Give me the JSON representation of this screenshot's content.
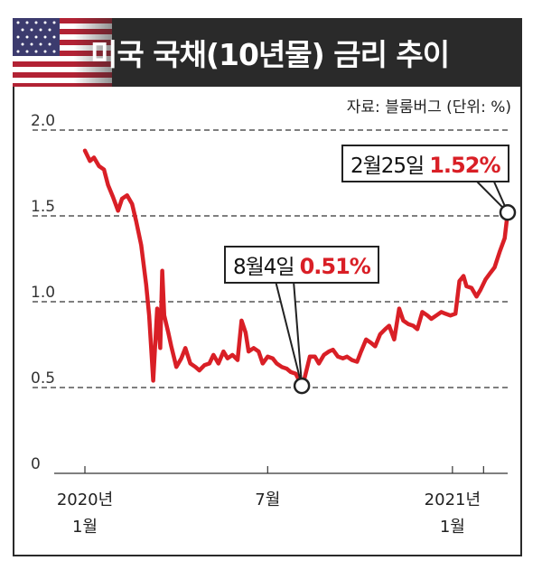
{
  "header": {
    "title": "미국 국채(10년물) 금리 추이"
  },
  "source_text": "자료: 블룸버그 (단위: %)",
  "callouts": [
    {
      "label": "8월4일",
      "value": "0.51%"
    },
    {
      "label": "2월25일",
      "value": "1.52%"
    }
  ],
  "colors": {
    "line": "#d91f26",
    "header_bg": "#2a2a2a",
    "highlight_text": "#d91f26"
  },
  "icons": {
    "flag": "us-flag-icon"
  },
  "chart_data": {
    "type": "line",
    "title": "미국 국채(10년물) 금리 추이",
    "ylabel": "",
    "xlabel": "",
    "unit": "%",
    "ylim": [
      0,
      2.0
    ],
    "yticks": [
      "2.0",
      "1.5",
      "1.0",
      "0.5",
      "0"
    ],
    "ytick_values": [
      2.0,
      1.5,
      1.0,
      0.5,
      0
    ],
    "grid": "dashed horizontal",
    "xtick_labels": [
      {
        "date": "2020-01-01",
        "lines": [
          "2020년",
          "1월"
        ]
      },
      {
        "date": "2020-07-01",
        "lines": [
          "7월"
        ]
      },
      {
        "date": "2021-01-01",
        "lines": [
          "2021년",
          "1월"
        ]
      }
    ],
    "x_axis_ticks": [
      "2020-01-01",
      "2020-07-01",
      "2021-01-01",
      "2021-02-01"
    ],
    "series": [
      {
        "x": [
          "2020-01-01",
          "2020-01-06",
          "2020-01-10",
          "2020-01-15",
          "2020-01-20",
          "2020-01-24",
          "2020-01-29",
          "2020-02-03",
          "2020-02-07",
          "2020-02-12",
          "2020-02-17",
          "2020-02-21",
          "2020-02-26",
          "2020-03-02",
          "2020-03-05",
          "2020-03-09",
          "2020-03-11",
          "2020-03-13",
          "2020-03-16",
          "2020-03-18",
          "2020-03-20",
          "2020-03-24",
          "2020-03-27",
          "2020-04-01",
          "2020-04-06",
          "2020-04-10",
          "2020-04-15",
          "2020-04-20",
          "2020-04-24",
          "2020-04-29",
          "2020-05-04",
          "2020-05-08",
          "2020-05-13",
          "2020-05-18",
          "2020-05-22",
          "2020-05-27",
          "2020-06-01",
          "2020-06-05",
          "2020-06-09",
          "2020-06-12",
          "2020-06-17",
          "2020-06-22",
          "2020-06-26",
          "2020-07-01",
          "2020-07-06",
          "2020-07-10",
          "2020-07-15",
          "2020-07-20",
          "2020-07-24",
          "2020-07-29",
          "2020-08-04",
          "2020-08-07",
          "2020-08-12",
          "2020-08-17",
          "2020-08-21",
          "2020-08-26",
          "2020-08-31",
          "2020-09-04",
          "2020-09-09",
          "2020-09-14",
          "2020-09-18",
          "2020-09-23",
          "2020-09-28",
          "2020-10-02",
          "2020-10-07",
          "2020-10-12",
          "2020-10-16",
          "2020-10-21",
          "2020-10-26",
          "2020-10-30",
          "2020-11-04",
          "2020-11-09",
          "2020-11-13",
          "2020-11-18",
          "2020-11-23",
          "2020-11-27",
          "2020-12-02",
          "2020-12-07",
          "2020-12-11",
          "2020-12-16",
          "2020-12-21",
          "2020-12-25",
          "2020-12-30",
          "2021-01-04",
          "2021-01-08",
          "2021-01-12",
          "2021-01-15",
          "2021-01-20",
          "2021-01-25",
          "2021-01-29",
          "2021-02-03",
          "2021-02-08",
          "2021-02-12",
          "2021-02-17",
          "2021-02-22",
          "2021-02-25"
        ],
        "y": [
          1.88,
          1.82,
          1.84,
          1.79,
          1.77,
          1.68,
          1.61,
          1.53,
          1.6,
          1.62,
          1.57,
          1.47,
          1.33,
          1.1,
          0.92,
          0.54,
          0.75,
          0.96,
          0.73,
          1.18,
          0.92,
          0.82,
          0.74,
          0.62,
          0.67,
          0.73,
          0.64,
          0.62,
          0.6,
          0.63,
          0.64,
          0.69,
          0.64,
          0.71,
          0.67,
          0.69,
          0.66,
          0.89,
          0.82,
          0.71,
          0.73,
          0.71,
          0.64,
          0.68,
          0.67,
          0.64,
          0.62,
          0.61,
          0.59,
          0.58,
          0.51,
          0.56,
          0.68,
          0.68,
          0.64,
          0.69,
          0.71,
          0.72,
          0.68,
          0.67,
          0.68,
          0.66,
          0.65,
          0.71,
          0.78,
          0.76,
          0.74,
          0.81,
          0.84,
          0.86,
          0.78,
          0.96,
          0.89,
          0.87,
          0.86,
          0.84,
          0.94,
          0.92,
          0.9,
          0.92,
          0.94,
          0.93,
          0.92,
          0.93,
          1.12,
          1.15,
          1.09,
          1.08,
          1.03,
          1.07,
          1.13,
          1.17,
          1.2,
          1.29,
          1.37,
          1.52
        ]
      }
    ],
    "annotations": [
      {
        "date": "2020-08-04",
        "value": 0.51,
        "text": "8월4일 0.51%"
      },
      {
        "date": "2021-02-25",
        "value": 1.52,
        "text": "2월25일 1.52%"
      }
    ]
  }
}
